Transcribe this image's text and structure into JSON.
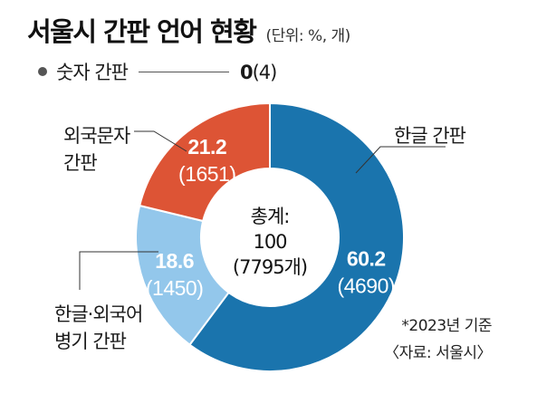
{
  "header": {
    "title": "서울시 간판 언어 현황",
    "unit": "(단위: %, 개)"
  },
  "legend": {
    "label": "숫자 간판",
    "value": "0",
    "count": "(4)"
  },
  "center": {
    "line1": "총계:",
    "line2": "100",
    "line3": "(7795개)"
  },
  "labels": {
    "korean_line1": "한글 간판",
    "foreign_line1": "외국문자",
    "foreign_line2": "간판",
    "mixed_line1": "한글·외국어",
    "mixed_line2": "병기 간판"
  },
  "note": {
    "date": "*2023년 기준",
    "source": "〈자료: 서울시〉"
  },
  "chart_data": {
    "type": "pie",
    "title": "서울시 간판 언어 현황",
    "unit": "(단위: %, 개)",
    "categories": [
      "한글 간판",
      "한글·외국어 병기 간판",
      "외국문자 간판",
      "숫자 간판"
    ],
    "values": [
      60.2,
      18.6,
      21.2,
      0
    ],
    "counts": [
      4690,
      1450,
      1651,
      4
    ],
    "value_labels": [
      "60.2",
      "18.6",
      "21.2",
      "0"
    ],
    "count_labels": [
      "(4690)",
      "(1450)",
      "(1651)",
      "(4)"
    ],
    "colors": [
      "#1a74ad",
      "#93c7eb",
      "#dd5435",
      "#555555"
    ],
    "total": "100",
    "total_count": "7795개",
    "legend_position": "top-left"
  }
}
